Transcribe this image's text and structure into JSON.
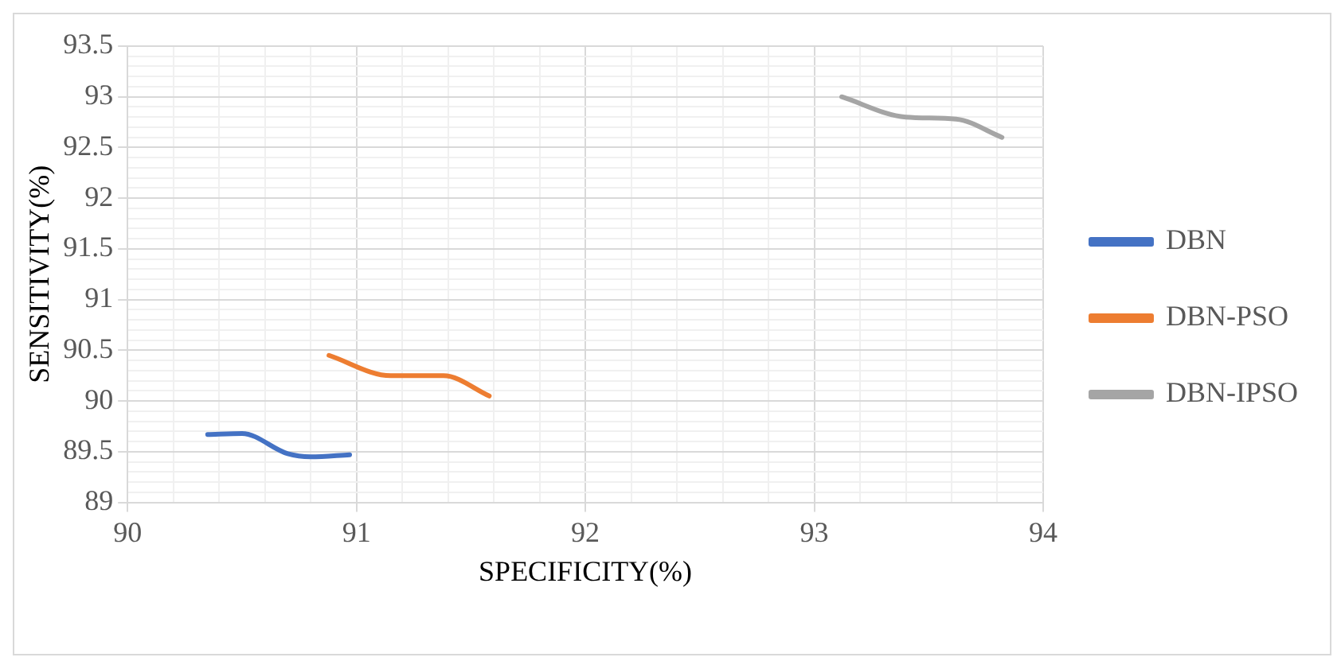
{
  "chart_data": {
    "type": "line",
    "xlabel": "SPECIFICITY(%)",
    "ylabel": "SENSITIVITY(%)",
    "series": [
      {
        "name": "DBN",
        "color": "#4472c4",
        "x": [
          90.35,
          90.5,
          90.7,
          90.8,
          90.97
        ],
        "values": [
          89.67,
          89.68,
          89.48,
          89.45,
          89.47
        ]
      },
      {
        "name": "DBN-PSO",
        "color": "#ed7d31",
        "x": [
          90.88,
          91.15,
          91.38,
          91.58
        ],
        "values": [
          90.45,
          90.25,
          90.25,
          90.05
        ]
      },
      {
        "name": "DBN-IPSO",
        "color": "#a5a5a5",
        "x": [
          93.12,
          93.4,
          93.62,
          93.82
        ],
        "values": [
          93.0,
          92.8,
          92.78,
          92.6
        ]
      }
    ],
    "xlim": [
      90,
      94
    ],
    "xticks": [
      90,
      {
        "value": 90.2,
        "label": null
      },
      {
        "value": 90.4,
        "label": null
      },
      {
        "value": 90.6,
        "label": null
      },
      {
        "value": 90.8,
        "label": null
      },
      91,
      {
        "value": 91.2,
        "label": null
      },
      {
        "value": 91.4,
        "label": null
      },
      {
        "value": 91.6,
        "label": null
      },
      {
        "value": 91.8,
        "label": null
      },
      92,
      {
        "value": 92.2,
        "label": null
      },
      {
        "value": 92.4,
        "label": null
      },
      {
        "value": 92.6,
        "label": null
      },
      {
        "value": 92.8,
        "label": null
      },
      93,
      {
        "value": 93.2,
        "label": null
      },
      {
        "value": 93.4,
        "label": null
      },
      {
        "value": 93.6,
        "label": null
      },
      {
        "value": 93.8,
        "label": null
      },
      94
    ],
    "ylim": [
      89,
      93.5
    ],
    "yticks": [
      89,
      {
        "value": 89.1,
        "label": null
      },
      {
        "value": 89.2,
        "label": null
      },
      {
        "value": 89.3,
        "label": null
      },
      {
        "value": 89.4,
        "label": null
      },
      89.5,
      {
        "value": 89.6,
        "label": null
      },
      {
        "value": 89.7,
        "label": null
      },
      {
        "value": 89.8,
        "label": null
      },
      {
        "value": 89.9,
        "label": null
      },
      90,
      {
        "value": 90.1,
        "label": null
      },
      {
        "value": 90.2,
        "label": null
      },
      {
        "value": 90.3,
        "label": null
      },
      {
        "value": 90.4,
        "label": null
      },
      90.5,
      {
        "value": 90.6,
        "label": null
      },
      {
        "value": 90.7,
        "label": null
      },
      {
        "value": 90.8,
        "label": null
      },
      {
        "value": 90.9,
        "label": null
      },
      91,
      {
        "value": 91.1,
        "label": null
      },
      {
        "value": 91.2,
        "label": null
      },
      {
        "value": 91.3,
        "label": null
      },
      {
        "value": 91.4,
        "label": null
      },
      91.5,
      {
        "value": 91.6,
        "label": null
      },
      {
        "value": 91.7,
        "label": null
      },
      {
        "value": 91.8,
        "label": null
      },
      {
        "value": 91.9,
        "label": null
      },
      92,
      {
        "value": 92.1,
        "label": null
      },
      {
        "value": 92.2,
        "label": null
      },
      {
        "value": 92.3,
        "label": null
      },
      {
        "value": 92.4,
        "label": null
      },
      92.5,
      {
        "value": 92.6,
        "label": null
      },
      {
        "value": 92.7,
        "label": null
      },
      {
        "value": 92.8,
        "label": null
      },
      {
        "value": 92.9,
        "label": null
      },
      93,
      {
        "value": 93.1,
        "label": null
      },
      {
        "value": 93.2,
        "label": null
      },
      {
        "value": 93.3,
        "label": null
      },
      {
        "value": 93.4,
        "label": null
      },
      93.5
    ],
    "grid": true,
    "legend": "right",
    "marker": "none",
    "line_style": "solid"
  }
}
